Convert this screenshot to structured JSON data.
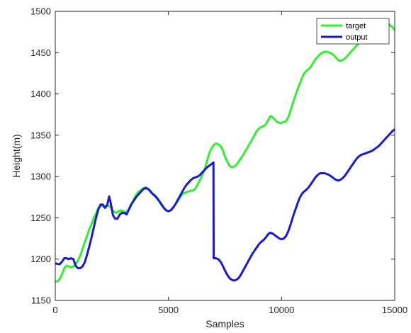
{
  "chart_data": {
    "type": "line",
    "xlabel": "Samples",
    "ylabel": "Height(m)",
    "xlim": [
      0,
      15000
    ],
    "ylim": [
      1150,
      1500
    ],
    "x_ticks": [
      0,
      5000,
      10000,
      15000
    ],
    "y_ticks": [
      1150,
      1200,
      1250,
      1300,
      1350,
      1400,
      1450,
      1500
    ],
    "x_tick_labels": [
      "0",
      "5000",
      "10000",
      "15000"
    ],
    "y_tick_labels": [
      "1150",
      "1200",
      "1250",
      "1300",
      "1350",
      "1400",
      "1450",
      "1500"
    ],
    "grid": false,
    "legend_position": "top-right",
    "series": [
      {
        "name": "target",
        "color": "#33ee33",
        "points": [
          [
            0,
            1173
          ],
          [
            100,
            1173
          ],
          [
            200,
            1176
          ],
          [
            300,
            1182
          ],
          [
            400,
            1189
          ],
          [
            500,
            1192
          ],
          [
            600,
            1191
          ],
          [
            700,
            1190
          ],
          [
            800,
            1191
          ],
          [
            900,
            1194
          ],
          [
            1000,
            1198
          ],
          [
            1100,
            1204
          ],
          [
            1200,
            1212
          ],
          [
            1300,
            1220
          ],
          [
            1400,
            1228
          ],
          [
            1500,
            1236
          ],
          [
            1600,
            1242
          ],
          [
            1700,
            1250
          ],
          [
            1800,
            1255
          ],
          [
            1900,
            1262
          ],
          [
            2000,
            1264
          ],
          [
            2100,
            1264
          ],
          [
            2200,
            1264
          ],
          [
            2300,
            1265
          ],
          [
            2400,
            1264
          ],
          [
            2500,
            1261
          ],
          [
            2600,
            1257
          ],
          [
            2700,
            1256
          ],
          [
            2800,
            1258
          ],
          [
            2900,
            1259
          ],
          [
            3000,
            1258
          ],
          [
            3100,
            1257
          ],
          [
            3200,
            1258
          ],
          [
            3300,
            1262
          ],
          [
            3400,
            1268
          ],
          [
            3500,
            1274
          ],
          [
            3600,
            1279
          ],
          [
            3700,
            1282
          ],
          [
            3800,
            1284
          ],
          [
            3900,
            1286
          ],
          [
            4000,
            1287
          ],
          [
            4100,
            1285
          ],
          [
            4200,
            1283
          ],
          [
            4300,
            1279
          ],
          [
            4400,
            1276
          ],
          [
            4500,
            1273
          ],
          [
            4600,
            1270
          ],
          [
            4700,
            1265
          ],
          [
            4800,
            1262
          ],
          [
            4900,
            1259
          ],
          [
            5000,
            1258
          ],
          [
            5100,
            1259
          ],
          [
            5200,
            1262
          ],
          [
            5300,
            1266
          ],
          [
            5400,
            1270
          ],
          [
            5500,
            1274
          ],
          [
            5600,
            1278
          ],
          [
            5700,
            1280
          ],
          [
            5800,
            1281
          ],
          [
            5900,
            1282
          ],
          [
            6000,
            1283
          ],
          [
            6100,
            1283
          ],
          [
            6200,
            1286
          ],
          [
            6300,
            1291
          ],
          [
            6400,
            1296
          ],
          [
            6500,
            1302
          ],
          [
            6600,
            1308
          ],
          [
            6700,
            1318
          ],
          [
            6800,
            1328
          ],
          [
            6900,
            1334
          ],
          [
            7000,
            1338
          ],
          [
            7100,
            1340
          ],
          [
            7200,
            1339
          ],
          [
            7300,
            1337
          ],
          [
            7400,
            1332
          ],
          [
            7500,
            1324
          ],
          [
            7600,
            1318
          ],
          [
            7700,
            1313
          ],
          [
            7800,
            1311
          ],
          [
            7900,
            1312
          ],
          [
            8000,
            1314
          ],
          [
            8100,
            1318
          ],
          [
            8200,
            1322
          ],
          [
            8300,
            1326
          ],
          [
            8400,
            1331
          ],
          [
            8500,
            1335
          ],
          [
            8600,
            1340
          ],
          [
            8700,
            1345
          ],
          [
            8800,
            1350
          ],
          [
            8900,
            1355
          ],
          [
            9000,
            1358
          ],
          [
            9100,
            1360
          ],
          [
            9200,
            1361
          ],
          [
            9300,
            1363
          ],
          [
            9400,
            1368
          ],
          [
            9500,
            1373
          ],
          [
            9600,
            1372
          ],
          [
            9700,
            1369
          ],
          [
            9800,
            1366
          ],
          [
            9900,
            1365
          ],
          [
            10000,
            1365
          ],
          [
            10100,
            1366
          ],
          [
            10200,
            1367
          ],
          [
            10300,
            1372
          ],
          [
            10400,
            1380
          ],
          [
            10500,
            1389
          ],
          [
            10600,
            1397
          ],
          [
            10700,
            1405
          ],
          [
            10800,
            1412
          ],
          [
            10900,
            1419
          ],
          [
            11000,
            1425
          ],
          [
            11100,
            1428
          ],
          [
            11200,
            1430
          ],
          [
            11300,
            1433
          ],
          [
            11400,
            1438
          ],
          [
            11500,
            1442
          ],
          [
            11600,
            1445
          ],
          [
            11700,
            1448
          ],
          [
            11800,
            1450
          ],
          [
            11900,
            1451
          ],
          [
            12000,
            1451
          ],
          [
            12100,
            1450
          ],
          [
            12200,
            1449
          ],
          [
            12300,
            1447
          ],
          [
            12400,
            1444
          ],
          [
            12500,
            1441
          ],
          [
            12600,
            1440
          ],
          [
            12700,
            1441
          ],
          [
            12800,
            1443
          ],
          [
            12900,
            1446
          ],
          [
            13000,
            1449
          ],
          [
            13100,
            1452
          ],
          [
            13200,
            1455
          ],
          [
            13300,
            1458
          ],
          [
            13400,
            1461
          ],
          [
            13500,
            1464
          ],
          [
            13600,
            1468
          ],
          [
            13700,
            1472
          ],
          [
            13800,
            1475
          ],
          [
            13900,
            1478
          ],
          [
            14000,
            1481
          ],
          [
            14100,
            1483
          ],
          [
            14200,
            1485
          ],
          [
            14300,
            1486
          ],
          [
            14400,
            1485
          ],
          [
            14500,
            1483
          ],
          [
            14600,
            1484
          ],
          [
            14700,
            1486
          ],
          [
            14800,
            1483
          ],
          [
            14900,
            1481
          ],
          [
            15000,
            1477
          ]
        ]
      },
      {
        "name": "output",
        "color": "#1a1acc",
        "points": [
          [
            0,
            1195
          ],
          [
            100,
            1194
          ],
          [
            200,
            1194
          ],
          [
            300,
            1197
          ],
          [
            400,
            1201
          ],
          [
            500,
            1201
          ],
          [
            600,
            1200
          ],
          [
            700,
            1201
          ],
          [
            800,
            1200
          ],
          [
            900,
            1192
          ],
          [
            1000,
            1189
          ],
          [
            1100,
            1189
          ],
          [
            1200,
            1191
          ],
          [
            1300,
            1196
          ],
          [
            1400,
            1205
          ],
          [
            1500,
            1215
          ],
          [
            1600,
            1226
          ],
          [
            1700,
            1238
          ],
          [
            1800,
            1250
          ],
          [
            1900,
            1260
          ],
          [
            2000,
            1266
          ],
          [
            2100,
            1266
          ],
          [
            2200,
            1262
          ],
          [
            2300,
            1266
          ],
          [
            2380,
            1276
          ],
          [
            2450,
            1268
          ],
          [
            2550,
            1253
          ],
          [
            2650,
            1249
          ],
          [
            2750,
            1249
          ],
          [
            2850,
            1254
          ],
          [
            2950,
            1256
          ],
          [
            3050,
            1256
          ],
          [
            3150,
            1254
          ],
          [
            3250,
            1260
          ],
          [
            3350,
            1266
          ],
          [
            3500,
            1272
          ],
          [
            3600,
            1276
          ],
          [
            3700,
            1279
          ],
          [
            3800,
            1282
          ],
          [
            3900,
            1285
          ],
          [
            4000,
            1286
          ],
          [
            4100,
            1285
          ],
          [
            4200,
            1282
          ],
          [
            4300,
            1279
          ],
          [
            4400,
            1277
          ],
          [
            4500,
            1274
          ],
          [
            4600,
            1270
          ],
          [
            4700,
            1266
          ],
          [
            4800,
            1262
          ],
          [
            4900,
            1259
          ],
          [
            5000,
            1258
          ],
          [
            5100,
            1259
          ],
          [
            5200,
            1262
          ],
          [
            5300,
            1266
          ],
          [
            5400,
            1271
          ],
          [
            5500,
            1276
          ],
          [
            5600,
            1281
          ],
          [
            5700,
            1286
          ],
          [
            5800,
            1290
          ],
          [
            5900,
            1293
          ],
          [
            6000,
            1296
          ],
          [
            6100,
            1298
          ],
          [
            6200,
            1299
          ],
          [
            6300,
            1300
          ],
          [
            6400,
            1302
          ],
          [
            6500,
            1305
          ],
          [
            6600,
            1308
          ],
          [
            6700,
            1311
          ],
          [
            6800,
            1313
          ],
          [
            6900,
            1315
          ],
          [
            6990,
            1317
          ],
          [
            7000,
            1201
          ],
          [
            7100,
            1201
          ],
          [
            7200,
            1200
          ],
          [
            7300,
            1197
          ],
          [
            7400,
            1192
          ],
          [
            7500,
            1186
          ],
          [
            7600,
            1181
          ],
          [
            7700,
            1177
          ],
          [
            7800,
            1175
          ],
          [
            7900,
            1174
          ],
          [
            8000,
            1175
          ],
          [
            8100,
            1177
          ],
          [
            8200,
            1181
          ],
          [
            8300,
            1186
          ],
          [
            8400,
            1191
          ],
          [
            8500,
            1196
          ],
          [
            8600,
            1201
          ],
          [
            8700,
            1206
          ],
          [
            8800,
            1210
          ],
          [
            8900,
            1214
          ],
          [
            9000,
            1218
          ],
          [
            9100,
            1221
          ],
          [
            9200,
            1223
          ],
          [
            9300,
            1226
          ],
          [
            9400,
            1230
          ],
          [
            9500,
            1232
          ],
          [
            9600,
            1231
          ],
          [
            9700,
            1229
          ],
          [
            9800,
            1227
          ],
          [
            9900,
            1225
          ],
          [
            10000,
            1224
          ],
          [
            10100,
            1225
          ],
          [
            10200,
            1228
          ],
          [
            10300,
            1234
          ],
          [
            10400,
            1242
          ],
          [
            10500,
            1251
          ],
          [
            10600,
            1259
          ],
          [
            10700,
            1267
          ],
          [
            10800,
            1274
          ],
          [
            10900,
            1279
          ],
          [
            11000,
            1282
          ],
          [
            11100,
            1284
          ],
          [
            11200,
            1287
          ],
          [
            11300,
            1291
          ],
          [
            11400,
            1295
          ],
          [
            11500,
            1299
          ],
          [
            11600,
            1302
          ],
          [
            11700,
            1304
          ],
          [
            11800,
            1304
          ],
          [
            11900,
            1304
          ],
          [
            12000,
            1303
          ],
          [
            12100,
            1302
          ],
          [
            12200,
            1300
          ],
          [
            12300,
            1298
          ],
          [
            12400,
            1296
          ],
          [
            12500,
            1295
          ],
          [
            12600,
            1296
          ],
          [
            12700,
            1298
          ],
          [
            12800,
            1301
          ],
          [
            12900,
            1305
          ],
          [
            13000,
            1309
          ],
          [
            13100,
            1313
          ],
          [
            13200,
            1317
          ],
          [
            13300,
            1321
          ],
          [
            13400,
            1324
          ],
          [
            13500,
            1326
          ],
          [
            13600,
            1327
          ],
          [
            13700,
            1328
          ],
          [
            13800,
            1329
          ],
          [
            13900,
            1330
          ],
          [
            14000,
            1331
          ],
          [
            14100,
            1333
          ],
          [
            14200,
            1335
          ],
          [
            14300,
            1337
          ],
          [
            14400,
            1340
          ],
          [
            14500,
            1343
          ],
          [
            14600,
            1346
          ],
          [
            14700,
            1349
          ],
          [
            14800,
            1352
          ],
          [
            14900,
            1355
          ],
          [
            15000,
            1357
          ]
        ]
      }
    ]
  }
}
